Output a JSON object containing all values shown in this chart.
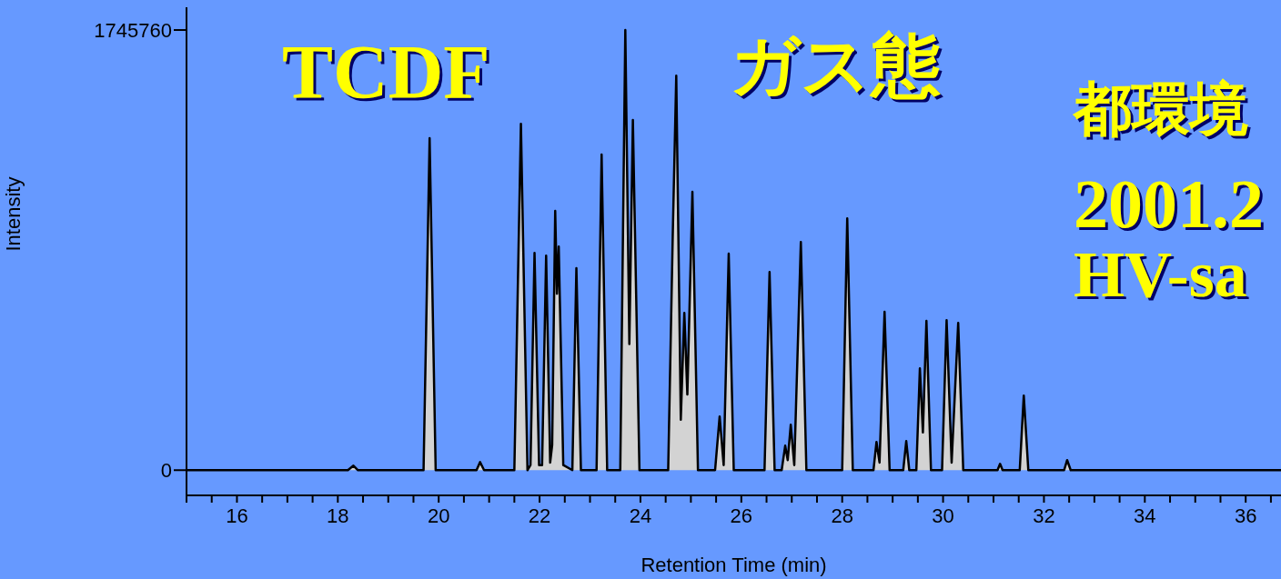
{
  "chart_data": {
    "type": "area",
    "title": "TCDF",
    "subtitle": "ガス態",
    "annotations": [
      "都環境",
      "2001.2",
      "HV-sa"
    ],
    "xlabel": "Retention Time (min)",
    "ylabel": "Intensity",
    "x": [
      15,
      18.2,
      18.31,
      18.4,
      19.7,
      19.82,
      19.94,
      20.75,
      20.82,
      20.9,
      21.5,
      21.63,
      21.76,
      21.82,
      21.9,
      21.99,
      22.05,
      22.13,
      22.21,
      22.25,
      22.31,
      22.345,
      22.38,
      22.47,
      22.65,
      22.73,
      22.82,
      23.13,
      23.23,
      23.34,
      23.6,
      23.7,
      23.78,
      23.85,
      23.98,
      24.55,
      24.64,
      24.71,
      24.8,
      24.87,
      24.93,
      25.03,
      25.14,
      25.48,
      25.57,
      25.65,
      25.75,
      25.85,
      26.46,
      26.56,
      26.66,
      26.8,
      26.87,
      26.92,
      26.98,
      27.05,
      27.18,
      27.29,
      28.0,
      28.1,
      28.21,
      28.62,
      28.68,
      28.74,
      28.84,
      28.94,
      29.21,
      29.27,
      29.33,
      29.47,
      29.54,
      29.6,
      29.67,
      29.76,
      29.98,
      30.07,
      30.17,
      30.3,
      30.4,
      31.08,
      31.13,
      31.18,
      31.52,
      31.6,
      31.69,
      32.4,
      32.46,
      32.53,
      36.7
    ],
    "series": [
      {
        "color": "#d3d3d3",
        "values": [
          0,
          0,
          18000,
          0,
          0,
          1317000,
          0,
          0,
          32000,
          0,
          0,
          1374000,
          0,
          20000,
          862000,
          20000,
          20000,
          851000,
          30000,
          100000,
          1028000,
          700000,
          887000,
          20000,
          0,
          801000,
          0,
          0,
          1252000,
          0,
          0,
          1746000,
          500000,
          1389000,
          0,
          0,
          927000,
          1565000,
          200000,
          624000,
          300000,
          1104000,
          0,
          0,
          213000,
          20000,
          859000,
          0,
          0,
          786000,
          0,
          0,
          97000,
          40000,
          180000,
          20000,
          905000,
          0,
          0,
          999000,
          0,
          0,
          112000,
          30000,
          628000,
          0,
          0,
          115000,
          0,
          0,
          404000,
          150000,
          592000,
          0,
          0,
          595000,
          30000,
          584000,
          0,
          0,
          25000,
          0,
          0,
          296000,
          0,
          0,
          40000,
          0,
          0
        ]
      }
    ],
    "xlim": [
      15,
      36.7
    ],
    "xticks": [
      {
        "value": 15,
        "label": null
      },
      {
        "value": 15.5,
        "label": null
      },
      16,
      {
        "value": 16.5,
        "label": null
      },
      {
        "value": 17,
        "label": null
      },
      {
        "value": 17.5,
        "label": null
      },
      18,
      {
        "value": 18.5,
        "label": null
      },
      {
        "value": 19,
        "label": null
      },
      {
        "value": 19.5,
        "label": null
      },
      20,
      {
        "value": 20.5,
        "label": null
      },
      {
        "value": 21,
        "label": null
      },
      {
        "value": 21.5,
        "label": null
      },
      22,
      {
        "value": 22.5,
        "label": null
      },
      {
        "value": 23,
        "label": null
      },
      {
        "value": 23.5,
        "label": null
      },
      24,
      {
        "value": 24.5,
        "label": null
      },
      {
        "value": 25,
        "label": null
      },
      {
        "value": 25.5,
        "label": null
      },
      26,
      {
        "value": 26.5,
        "label": null
      },
      {
        "value": 27,
        "label": null
      },
      {
        "value": 27.5,
        "label": null
      },
      28,
      {
        "value": 28.5,
        "label": null
      },
      {
        "value": 29,
        "label": null
      },
      {
        "value": 29.5,
        "label": null
      },
      30,
      {
        "value": 30.5,
        "label": null
      },
      {
        "value": 31,
        "label": null
      },
      {
        "value": 31.5,
        "label": null
      },
      32,
      {
        "value": 32.5,
        "label": null
      },
      {
        "value": 33,
        "label": null
      },
      {
        "value": 33.5,
        "label": null
      },
      34,
      {
        "value": 34.5,
        "label": null
      },
      {
        "value": 35,
        "label": null
      },
      {
        "value": 35.5,
        "label": null
      },
      36,
      {
        "value": 36.5,
        "label": null
      }
    ],
    "ylim": [
      -100000,
      1836000
    ],
    "yticks": [
      0,
      1745760
    ],
    "grid": false,
    "legend": false
  }
}
